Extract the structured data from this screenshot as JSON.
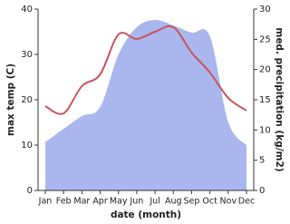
{
  "chart_data": {
    "type": "line",
    "x_label": "date (month)",
    "y_label": "max temp (C)",
    "y2_label": "med. precipitation (kg/m2)",
    "categories": [
      "Jan",
      "Feb",
      "Mar",
      "Apr",
      "May",
      "Jun",
      "Jul",
      "Aug",
      "Sep",
      "Oct",
      "Nov",
      "Dec"
    ],
    "series": [
      {
        "name": "med. precipitation",
        "type": "area",
        "axis": "y2",
        "color": "#aab7ee",
        "values": [
          8,
          10.2,
          12.3,
          13.8,
          22.5,
          27,
          28.2,
          27.3,
          26.1,
          25.5,
          11.3,
          7.5
        ]
      },
      {
        "name": "max temp",
        "type": "line",
        "axis": "y",
        "color": "#c8535a",
        "values": [
          18.6,
          17,
          23,
          25.6,
          34.4,
          33.4,
          35,
          36,
          30.4,
          26,
          20.4,
          17.6
        ]
      }
    ],
    "ylim": [
      0,
      40
    ],
    "yticks": [
      0,
      10,
      20,
      30,
      40
    ],
    "y2lim": [
      0,
      30
    ],
    "y2ticks": [
      0,
      5,
      10,
      15,
      20,
      25,
      30
    ]
  }
}
